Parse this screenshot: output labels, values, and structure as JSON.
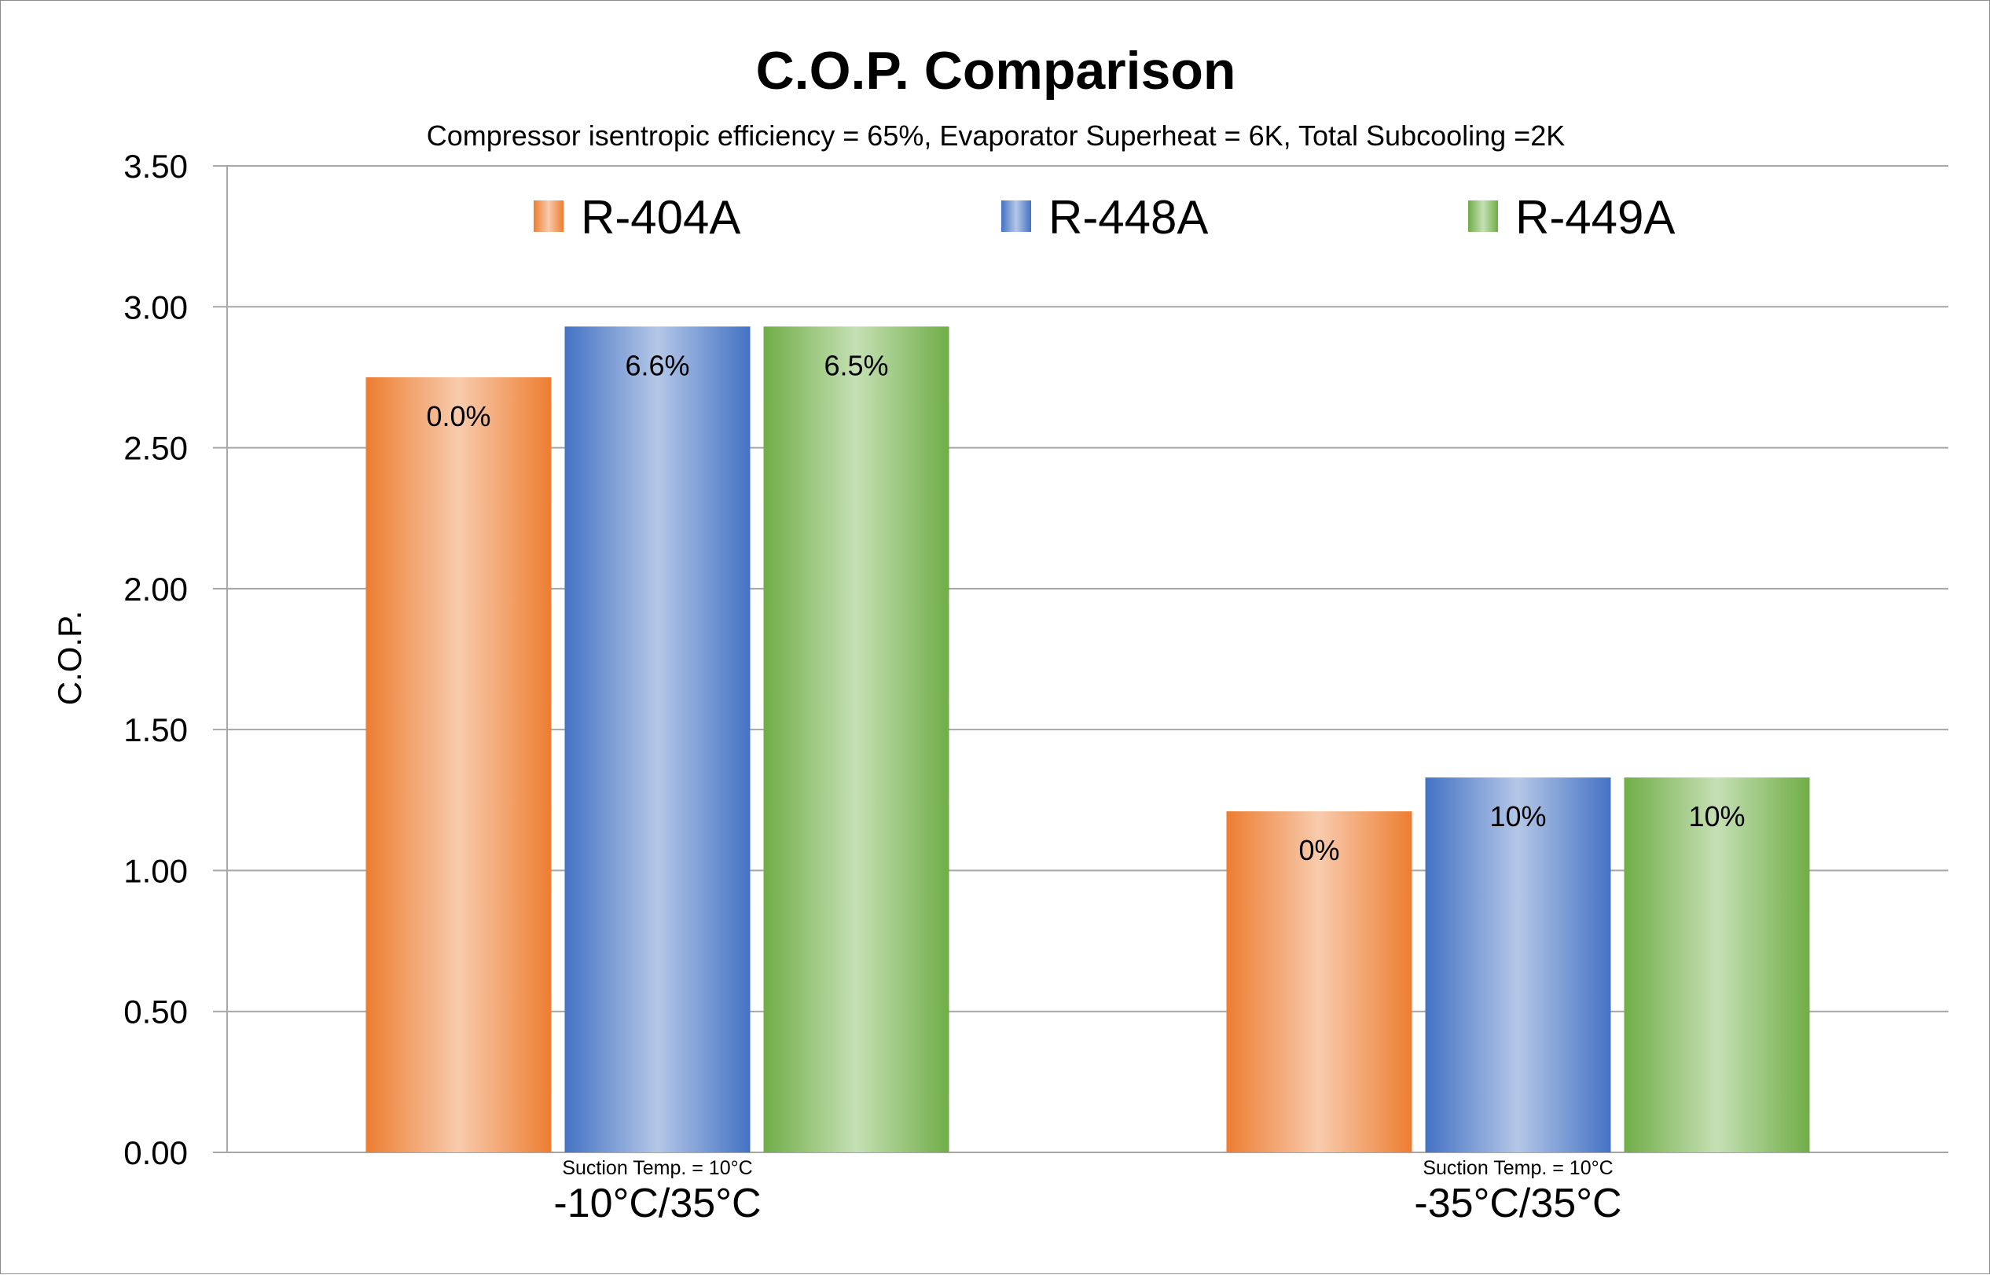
{
  "chart_data": {
    "type": "bar",
    "title": "C.O.P. Comparison",
    "subtitle": "Compressor isentropic efficiency = 65%, Evaporator Superheat = 6K, Total Subcooling =2K",
    "ylabel": "C.O.P.",
    "xlabel": "",
    "ylim": [
      0,
      3.5
    ],
    "yticks": [
      "0.00",
      "0.50",
      "1.00",
      "1.50",
      "2.00",
      "2.50",
      "3.00",
      "3.50"
    ],
    "grid": true,
    "legend_position": "top",
    "categories": [
      "-10°C/35°C",
      "-35°C/35°C"
    ],
    "category_sublabels": [
      "Suction Temp. = 10°C",
      "Suction Temp. = 10°C"
    ],
    "series": [
      {
        "name": "R-404A",
        "values": [
          2.75,
          1.21
        ],
        "labels": [
          "0.0%",
          "0%"
        ],
        "color": "#ED7D31",
        "light": "#F8CBAD"
      },
      {
        "name": "R-448A",
        "values": [
          2.93,
          1.33
        ],
        "labels": [
          "6.6%",
          "10%"
        ],
        "color": "#4472C4",
        "light": "#B4C7E7"
      },
      {
        "name": "R-449A",
        "values": [
          2.93,
          1.33
        ],
        "labels": [
          "6.5%",
          "10%"
        ],
        "color": "#70AD47",
        "light": "#C5E0B4"
      }
    ]
  }
}
